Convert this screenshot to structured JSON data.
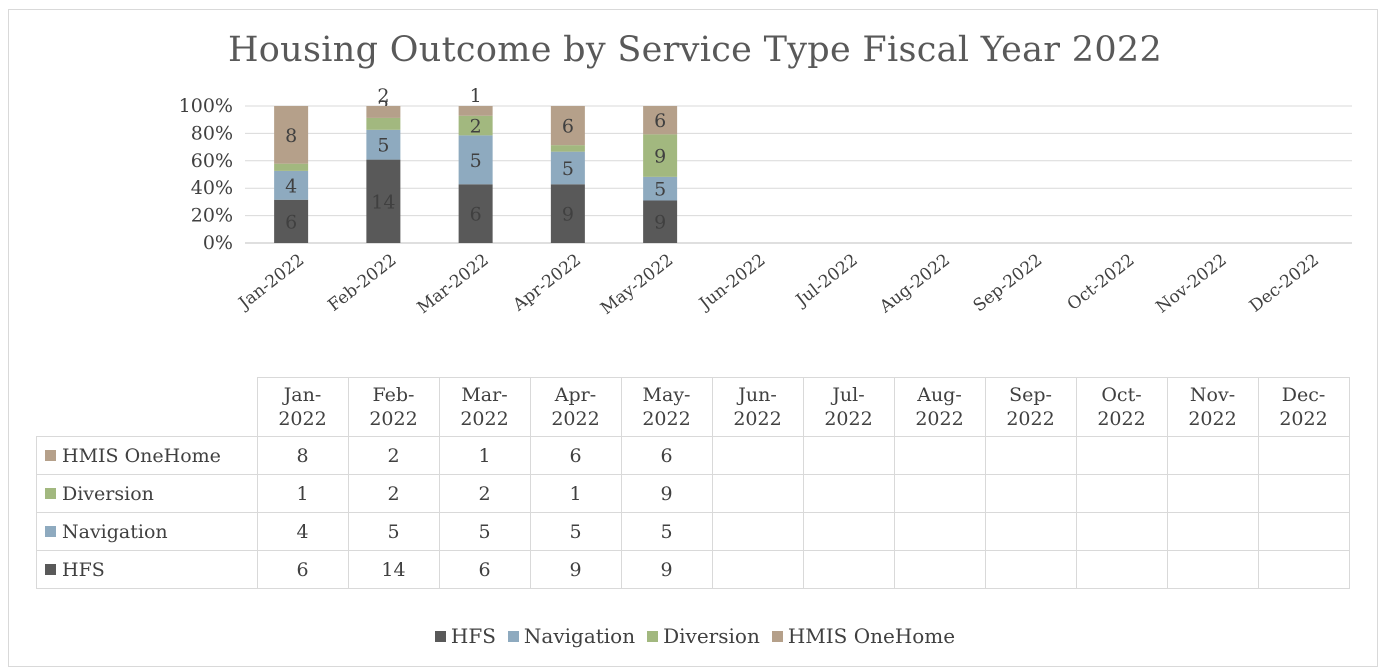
{
  "chart_data": {
    "type": "bar",
    "stacked": "percent",
    "title": "Housing Outcome by Service Type Fiscal Year 2022",
    "categories": [
      "Jan-2022",
      "Feb-2022",
      "Mar-2022",
      "Apr-2022",
      "May-2022",
      "Jun-2022",
      "Jul-2022",
      "Aug-2022",
      "Sep-2022",
      "Oct-2022",
      "Nov-2022",
      "Dec-2022"
    ],
    "series": [
      {
        "name": "HFS",
        "color": "#595959",
        "values": [
          6,
          14,
          6,
          9,
          9,
          null,
          null,
          null,
          null,
          null,
          null,
          null
        ]
      },
      {
        "name": "Navigation",
        "color": "#8eaabf",
        "values": [
          4,
          5,
          5,
          5,
          5,
          null,
          null,
          null,
          null,
          null,
          null,
          null
        ]
      },
      {
        "name": "Diversion",
        "color": "#a2b87f",
        "values": [
          1,
          2,
          2,
          1,
          9,
          null,
          null,
          null,
          null,
          null,
          null,
          null
        ]
      },
      {
        "name": "HMIS OneHome",
        "color": "#b5a08a",
        "values": [
          8,
          2,
          1,
          6,
          6,
          null,
          null,
          null,
          null,
          null,
          null,
          null
        ]
      }
    ],
    "y_ticks": [
      "0%",
      "20%",
      "40%",
      "60%",
      "80%",
      "100%"
    ],
    "ylim": [
      0,
      100
    ],
    "grid": true,
    "legend": "bottom",
    "data_table": true
  }
}
